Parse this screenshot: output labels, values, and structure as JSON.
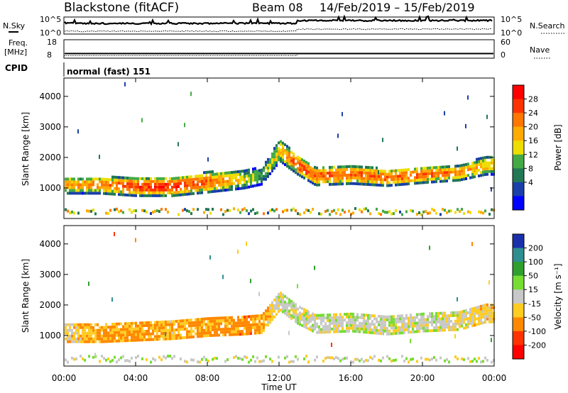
{
  "header": {
    "station": "Blackstone (fitACF)",
    "beam": "Beam 08",
    "date_range": "14/Feb/2019 – 15/Feb/2019"
  },
  "summary_panel": {
    "nsky_label": "N.Sky",
    "nsky_ticks": [
      "10^5",
      "10^0"
    ],
    "nsearch_label": "N.Search",
    "nsearch_ticks": [
      "10^5",
      "10^0"
    ],
    "freq_label": "Freq.",
    "freq_unit": "[MHz]",
    "freq_ticks": [
      "18",
      "8"
    ],
    "nave_label": "Nave",
    "nave_ticks": [
      "60",
      "0"
    ],
    "cpid_label": "CPID",
    "cpid_value": "normal (fast) 151"
  },
  "axes": {
    "ylabel": "Slant Range [km]",
    "yticks": [
      "4000",
      "3000",
      "2000",
      "1000"
    ],
    "xlabel": "Time UT",
    "xticks": [
      "00:00",
      "04:00",
      "08:00",
      "12:00",
      "16:00",
      "20:00",
      "00:00"
    ]
  },
  "power_colorbar": {
    "label": "Power [dB]",
    "ticks": [
      "28",
      "24",
      "20",
      "16",
      "12",
      "8",
      "4"
    ],
    "colors": [
      "#ff0000",
      "#ff3300",
      "#ff7700",
      "#ffaa00",
      "#eedd00",
      "#44aa44",
      "#227755",
      "#1a3faa",
      "#0000ff"
    ]
  },
  "velocity_colorbar": {
    "label": "Velocity [m s⁻¹]",
    "ticks": [
      "200",
      "100",
      "50",
      "15",
      "-15",
      "-50",
      "-100",
      "-200"
    ],
    "colors": [
      "#1a2faa",
      "#2f8f8f",
      "#2fa02f",
      "#77dd33",
      "#c8c8c8",
      "#ffcc22",
      "#ff8800",
      "#ff3300",
      "#ff0000"
    ]
  },
  "chart_data": {
    "type": "heatmap",
    "title": "Blackstone (fitACF)  Beam 08  14/Feb/2019 – 15/Feb/2019",
    "xlabel": "Time UT",
    "ylabel": "Slant Range [km]",
    "xlim_hours": [
      0,
      24
    ],
    "ylim_km": [
      0,
      4600
    ],
    "panels": [
      {
        "name": "Power [dB]",
        "colorbar_range": [
          0,
          32
        ],
        "main_echo_band": {
          "time_h": [
            0,
            2,
            4,
            6,
            8,
            10,
            11,
            12,
            13,
            14,
            16,
            18,
            20,
            22,
            23.5
          ],
          "center_km": [
            1050,
            1050,
            1000,
            1000,
            1150,
            1250,
            1350,
            2200,
            1700,
            1350,
            1400,
            1300,
            1400,
            1450,
            1700
          ],
          "width_km": [
            450,
            450,
            500,
            500,
            550,
            500,
            450,
            600,
            500,
            500,
            500,
            450,
            450,
            400,
            500
          ],
          "power_db": [
            20,
            22,
            26,
            28,
            24,
            16,
            12,
            18,
            26,
            24,
            24,
            24,
            24,
            22,
            18
          ]
        }
      },
      {
        "name": "Velocity [m s-1]",
        "colorbar_range": [
          -250,
          250
        ],
        "main_echo_band": {
          "time_h": [
            0,
            2,
            4,
            6,
            8,
            10,
            11,
            12,
            13,
            14,
            16,
            18,
            20,
            22,
            23.5
          ],
          "center_km": [
            1050,
            1050,
            1100,
            1150,
            1250,
            1300,
            1350,
            2100,
            1650,
            1350,
            1400,
            1300,
            1400,
            1450,
            1700
          ],
          "velocity_ms": [
            -20,
            -60,
            -60,
            -40,
            -60,
            -70,
            -60,
            0,
            0,
            0,
            0,
            0,
            0,
            -10,
            -30
          ]
        }
      }
    ],
    "nave": {
      "time_h": [
        0,
        13,
        24
      ],
      "values": [
        8,
        15,
        15
      ],
      "ylim": [
        0,
        60
      ]
    },
    "freq_mhz": {
      "time_h": [
        0,
        24
      ],
      "values": [
        10.5,
        10.5
      ],
      "ylim": [
        8,
        18
      ]
    }
  }
}
